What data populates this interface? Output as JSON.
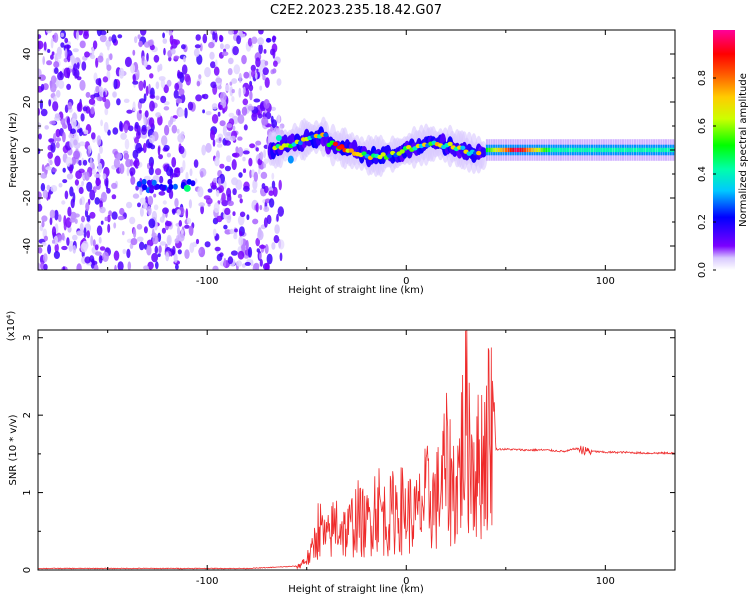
{
  "figure_title": "C2E2.2023.235.18.42.G07",
  "colors": {
    "snr_line": "#ee2a2a",
    "frame": "#000000",
    "background": "#ffffff",
    "colorbar_stops": [
      "#e9e9ff",
      "#7b00ff",
      "#0000ff",
      "#00ffff",
      "#00ff00",
      "#ffff00",
      "#ff6600",
      "#ff0000",
      "#ff00cc"
    ]
  },
  "chart_data": [
    {
      "type": "heatmap",
      "title": "",
      "xlabel": "Height of straight line (km)",
      "ylabel": "Frequency (Hz)",
      "xlim": [
        -185,
        135
      ],
      "ylim": [
        -50,
        50
      ],
      "x_ticks": [
        "-100",
        "0",
        "100"
      ],
      "y_ticks": [
        "-40",
        "-20",
        "0",
        "20",
        "40"
      ],
      "colorbar": {
        "label": "Normalized spectral amplitude",
        "range": [
          0,
          1
        ],
        "ticks": [
          "0.0",
          "0.2",
          "0.4",
          "0.6",
          "0.8"
        ]
      },
      "regions": [
        {
          "x_range": [
            -185,
            -68
          ],
          "description_value": "scattered noise, low amplitude (~0.05-0.3)"
        },
        {
          "x_range": [
            -68,
            40
          ],
          "frequency_center_hz": 0,
          "amplitude_range": [
            0.2,
            1.0
          ]
        },
        {
          "x_range": [
            40,
            135
          ],
          "frequency_center_hz": 0,
          "amplitude_range": [
            0.3,
            1.0
          ]
        }
      ],
      "peak": {
        "x_km": 55,
        "frequency_hz": 0,
        "amplitude": 1.0
      }
    },
    {
      "type": "line",
      "title": "",
      "xlabel": "Height of straight line (km)",
      "ylabel": "SNR (10 * v/v)",
      "y_multiplier": "(x10⁴)",
      "xlim": [
        -185,
        135
      ],
      "ylim": [
        0,
        3.1
      ],
      "x_ticks": [
        "-100",
        "0",
        "100"
      ],
      "y_ticks": [
        "0",
        "1",
        "2",
        "3"
      ],
      "series": [
        {
          "x": [
            -185,
            -150,
            -120,
            -100,
            -80,
            -70,
            -55,
            -48,
            -44,
            -40,
            -35,
            -30,
            -25,
            -20,
            -15,
            -10,
            -5,
            0,
            5,
            10,
            15,
            20,
            25,
            30,
            35,
            40,
            43,
            45,
            50,
            60,
            70,
            80,
            85,
            90,
            100,
            110,
            120,
            135
          ],
          "y": [
            0.02,
            0.02,
            0.02,
            0.02,
            0.02,
            0.03,
            0.05,
            0.3,
            0.9,
            0.6,
            1.0,
            0.75,
            1.1,
            0.9,
            1.4,
            1.0,
            1.3,
            1.2,
            1.1,
            1.5,
            1.4,
            2.1,
            1.6,
            3.0,
            2.0,
            2.6,
            3.1,
            1.56,
            1.56,
            1.55,
            1.55,
            1.53,
            1.57,
            1.54,
            1.52,
            1.52,
            1.51,
            1.51
          ]
        }
      ]
    }
  ]
}
